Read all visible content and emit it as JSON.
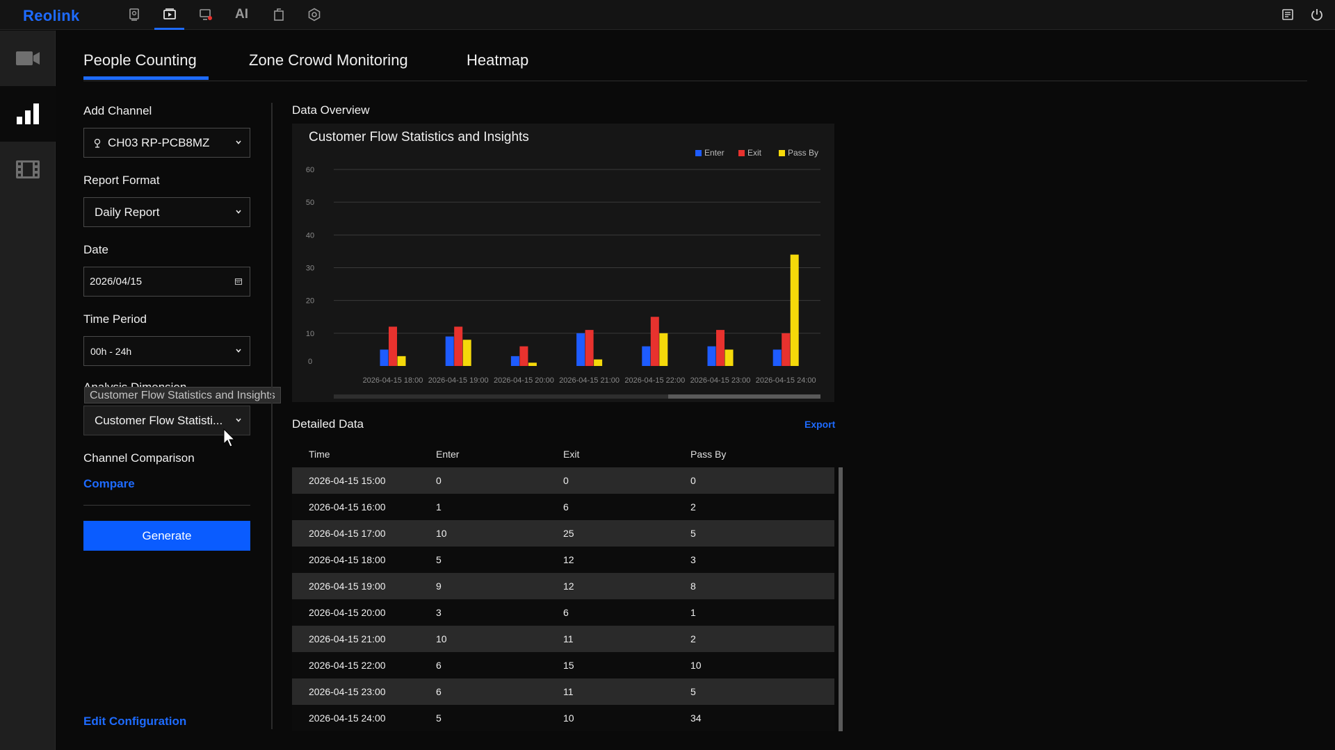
{
  "app": {
    "logo": "Reolink",
    "top_ai_label": "AI"
  },
  "tabs": [
    "People Counting",
    "Zone Crowd Monitoring",
    "Heatmap"
  ],
  "filters": {
    "add_channel_label": "Add Channel",
    "channel_value": "CH03 RP-PCB8MZ",
    "report_format_label": "Report Format",
    "report_format_value": "Daily Report",
    "date_label": "Date",
    "date_value": "2026/04/15",
    "time_period_label": "Time Period",
    "time_period_value": "00h - 24h",
    "analysis_dimension_label": "Analysis Dimension",
    "analysis_dimension_value": "Customer Flow Statisti...",
    "analysis_dimension_tooltip": "Customer Flow Statistics and Insights",
    "channel_comparison_label": "Channel Comparison",
    "compare_link": "Compare",
    "generate_button": "Generate",
    "edit_configuration_link": "Edit Configuration"
  },
  "overview": {
    "section_title": "Data Overview"
  },
  "chart_data": {
    "type": "bar",
    "title": "Customer Flow Statistics and Insights",
    "categories": [
      "2026-04-15 18:00",
      "2026-04-15 19:00",
      "2026-04-15 20:00",
      "2026-04-15 21:00",
      "2026-04-15 22:00",
      "2026-04-15 23:00",
      "2026-04-15 24:00"
    ],
    "series": [
      {
        "name": "Enter",
        "color": "#1e5cff",
        "values": [
          5,
          9,
          3,
          10,
          6,
          6,
          5
        ]
      },
      {
        "name": "Exit",
        "color": "#e8322e",
        "values": [
          12,
          12,
          6,
          11,
          15,
          11,
          10
        ]
      },
      {
        "name": "Pass By",
        "color": "#f5d90a",
        "values": [
          3,
          8,
          1,
          2,
          10,
          5,
          34
        ]
      }
    ],
    "y_ticks": [
      "0",
      "10",
      "20",
      "30",
      "40",
      "50",
      "60"
    ],
    "ylim": [
      0,
      60
    ],
    "xlabel": "",
    "ylabel": "",
    "grid": true,
    "legend_position": "top-right"
  },
  "detail": {
    "section_title": "Detailed Data",
    "export_label": "Export",
    "columns": [
      "Time",
      "Enter",
      "Exit",
      "Pass By"
    ],
    "rows": [
      [
        "2026-04-15 15:00",
        "0",
        "0",
        "0"
      ],
      [
        "2026-04-15 16:00",
        "1",
        "6",
        "2"
      ],
      [
        "2026-04-15 17:00",
        "10",
        "25",
        "5"
      ],
      [
        "2026-04-15 18:00",
        "5",
        "12",
        "3"
      ],
      [
        "2026-04-15 19:00",
        "9",
        "12",
        "8"
      ],
      [
        "2026-04-15 20:00",
        "3",
        "6",
        "1"
      ],
      [
        "2026-04-15 21:00",
        "10",
        "11",
        "2"
      ],
      [
        "2026-04-15 22:00",
        "6",
        "15",
        "10"
      ],
      [
        "2026-04-15 23:00",
        "6",
        "11",
        "5"
      ],
      [
        "2026-04-15 24:00",
        "5",
        "10",
        "34"
      ]
    ]
  }
}
